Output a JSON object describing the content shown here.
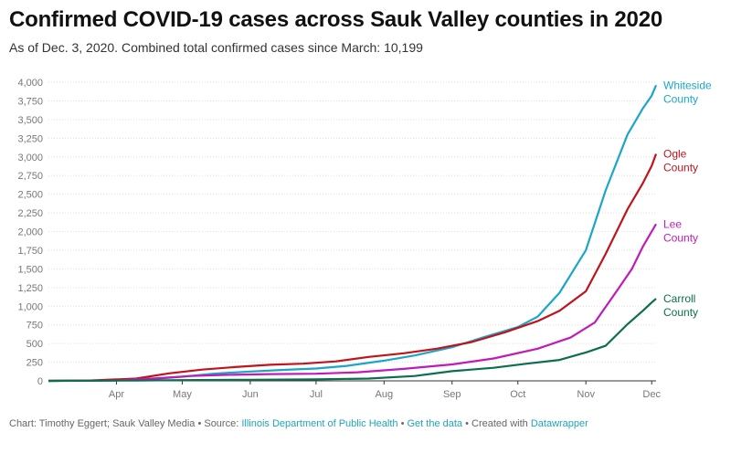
{
  "header": {
    "title": "Confirmed COVID-19 cases across Sauk Valley counties in 2020",
    "subtitle": "As of Dec. 3, 2020. Combined total confirmed cases since March: 10,199"
  },
  "footer": {
    "chart_by": "Chart: Timothy Eggert; Sauk Valley Media",
    "sep1": " • Source: ",
    "source_link": "Illinois Department of Public Health",
    "sep2": " • ",
    "data_link": "Get the data",
    "sep3": " • Created with ",
    "tool_link": "Datawrapper"
  },
  "chart_data": {
    "type": "line",
    "title": "Confirmed COVID-19 cases across Sauk Valley counties in 2020",
    "subtitle": "As of Dec. 3, 2020. Combined total confirmed cases since March: 10,199",
    "x_range": [
      "2020-03-01",
      "2020-12-03"
    ],
    "x_ticks": [
      {
        "date": "2020-04-01",
        "label": "Apr"
      },
      {
        "date": "2020-05-01",
        "label": "May"
      },
      {
        "date": "2020-06-01",
        "label": "Jun"
      },
      {
        "date": "2020-07-01",
        "label": "Jul"
      },
      {
        "date": "2020-08-01",
        "label": "Aug"
      },
      {
        "date": "2020-09-01",
        "label": "Sep"
      },
      {
        "date": "2020-10-01",
        "label": "Oct"
      },
      {
        "date": "2020-11-01",
        "label": "Nov"
      },
      {
        "date": "2020-12-01",
        "label": "Dec"
      }
    ],
    "y_ticks": [
      0,
      250,
      500,
      750,
      1000,
      1250,
      1500,
      1750,
      2000,
      2250,
      2500,
      2750,
      3000,
      3250,
      3500,
      3750,
      4000
    ],
    "y_tick_labels": [
      "0",
      "250",
      "500",
      "750",
      "1,000",
      "1,250",
      "1,500",
      "1,750",
      "2,000",
      "2,250",
      "2,500",
      "2,750",
      "3,000",
      "3,250",
      "3,500",
      "3,750",
      "4,000"
    ],
    "ylim": [
      0,
      4000
    ],
    "grid": true,
    "legend": "direct labels at right end of lines",
    "series": [
      {
        "name": "Whiteside County",
        "label_lines": [
          "Whiteside",
          "County"
        ],
        "color": "#1ba6c9",
        "points": [
          [
            "2020-03-01",
            0
          ],
          [
            "2020-03-25",
            2
          ],
          [
            "2020-04-15",
            20
          ],
          [
            "2020-05-01",
            55
          ],
          [
            "2020-05-15",
            95
          ],
          [
            "2020-06-01",
            125
          ],
          [
            "2020-06-15",
            145
          ],
          [
            "2020-07-01",
            165
          ],
          [
            "2020-07-15",
            200
          ],
          [
            "2020-08-01",
            270
          ],
          [
            "2020-08-15",
            340
          ],
          [
            "2020-09-01",
            450
          ],
          [
            "2020-09-15",
            580
          ],
          [
            "2020-10-01",
            720
          ],
          [
            "2020-10-10",
            860
          ],
          [
            "2020-10-20",
            1180
          ],
          [
            "2020-11-01",
            1750
          ],
          [
            "2020-11-10",
            2550
          ],
          [
            "2020-11-20",
            3300
          ],
          [
            "2020-11-27",
            3650
          ],
          [
            "2020-12-01",
            3820
          ],
          [
            "2020-12-03",
            3960
          ]
        ]
      },
      {
        "name": "Ogle County",
        "label_lines": [
          "Ogle",
          "County"
        ],
        "color": "#c0131a",
        "points": [
          [
            "2020-03-01",
            0
          ],
          [
            "2020-03-20",
            5
          ],
          [
            "2020-04-10",
            30
          ],
          [
            "2020-04-25",
            100
          ],
          [
            "2020-05-10",
            150
          ],
          [
            "2020-05-25",
            185
          ],
          [
            "2020-06-10",
            215
          ],
          [
            "2020-06-25",
            230
          ],
          [
            "2020-07-10",
            260
          ],
          [
            "2020-07-25",
            320
          ],
          [
            "2020-08-10",
            370
          ],
          [
            "2020-08-25",
            430
          ],
          [
            "2020-09-10",
            520
          ],
          [
            "2020-09-25",
            650
          ],
          [
            "2020-10-10",
            800
          ],
          [
            "2020-10-20",
            940
          ],
          [
            "2020-11-01",
            1200
          ],
          [
            "2020-11-10",
            1700
          ],
          [
            "2020-11-20",
            2300
          ],
          [
            "2020-11-27",
            2650
          ],
          [
            "2020-12-01",
            2880
          ],
          [
            "2020-12-03",
            3040
          ]
        ]
      },
      {
        "name": "Lee County",
        "label_lines": [
          "Lee",
          "County"
        ],
        "color": "#c01bb8",
        "points": [
          [
            "2020-03-01",
            0
          ],
          [
            "2020-04-01",
            5
          ],
          [
            "2020-04-20",
            35
          ],
          [
            "2020-05-05",
            65
          ],
          [
            "2020-05-20",
            80
          ],
          [
            "2020-06-10",
            90
          ],
          [
            "2020-07-01",
            95
          ],
          [
            "2020-07-20",
            115
          ],
          [
            "2020-08-10",
            160
          ],
          [
            "2020-09-01",
            220
          ],
          [
            "2020-09-20",
            300
          ],
          [
            "2020-10-10",
            430
          ],
          [
            "2020-10-25",
            580
          ],
          [
            "2020-11-05",
            780
          ],
          [
            "2020-11-15",
            1200
          ],
          [
            "2020-11-22",
            1500
          ],
          [
            "2020-11-27",
            1800
          ],
          [
            "2020-12-01",
            2000
          ],
          [
            "2020-12-03",
            2100
          ]
        ]
      },
      {
        "name": "Carroll County",
        "label_lines": [
          "Carroll",
          "County"
        ],
        "color": "#0b6e4f",
        "points": [
          [
            "2020-03-01",
            0
          ],
          [
            "2020-04-10",
            5
          ],
          [
            "2020-05-01",
            10
          ],
          [
            "2020-06-01",
            15
          ],
          [
            "2020-07-01",
            20
          ],
          [
            "2020-07-25",
            30
          ],
          [
            "2020-08-15",
            65
          ],
          [
            "2020-09-01",
            130
          ],
          [
            "2020-09-20",
            175
          ],
          [
            "2020-10-05",
            230
          ],
          [
            "2020-10-20",
            280
          ],
          [
            "2020-11-01",
            380
          ],
          [
            "2020-11-10",
            470
          ],
          [
            "2020-11-20",
            760
          ],
          [
            "2020-11-27",
            940
          ],
          [
            "2020-12-01",
            1050
          ],
          [
            "2020-12-03",
            1100
          ]
        ]
      }
    ]
  }
}
